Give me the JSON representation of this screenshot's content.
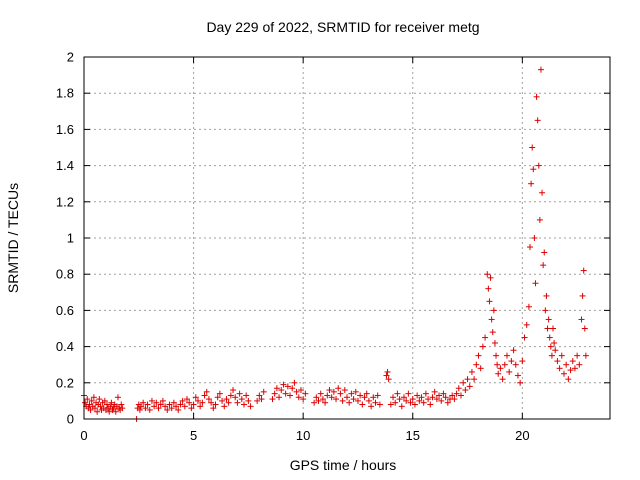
{
  "chart_data": {
    "type": "scatter",
    "title": "Day 229 of 2022, SRMTID for receiver metg",
    "xlabel": "GPS time / hours",
    "ylabel": "SRMTID / TECUs",
    "xlim": [
      0,
      24
    ],
    "ylim": [
      0,
      2
    ],
    "xticks": [
      0,
      5,
      10,
      15,
      20
    ],
    "yticks": [
      0,
      0.2,
      0.4,
      0.6,
      0.8,
      1,
      1.2,
      1.4,
      1.6,
      1.8,
      2
    ],
    "ytick_labels": [
      "0",
      "0.2",
      "0.4",
      "0.6",
      "0.8",
      "1",
      "1.2",
      "1.4",
      "1.6",
      "1.8",
      "2"
    ],
    "marker": "+",
    "grid": true,
    "color": "#dd0000",
    "series": [
      {
        "name": "SRMTID",
        "points": [
          [
            0.0,
            0.13
          ],
          [
            0.05,
            0.09
          ],
          [
            0.1,
            0.07
          ],
          [
            0.15,
            0.11
          ],
          [
            0.2,
            0.06
          ],
          [
            0.25,
            0.08
          ],
          [
            0.3,
            0.05
          ],
          [
            0.35,
            0.1
          ],
          [
            0.4,
            0.07
          ],
          [
            0.45,
            0.12
          ],
          [
            0.5,
            0.06
          ],
          [
            0.55,
            0.09
          ],
          [
            0.6,
            0.04
          ],
          [
            0.65,
            0.08
          ],
          [
            0.7,
            0.11
          ],
          [
            0.75,
            0.07
          ],
          [
            0.8,
            0.05
          ],
          [
            0.85,
            0.09
          ],
          [
            0.9,
            0.06
          ],
          [
            0.95,
            0.1
          ],
          [
            1.0,
            0.05
          ],
          [
            1.05,
            0.08
          ],
          [
            1.1,
            0.06
          ],
          [
            1.15,
            0.04
          ],
          [
            1.2,
            0.07
          ],
          [
            1.25,
            0.09
          ],
          [
            1.3,
            0.05
          ],
          [
            1.35,
            0.06
          ],
          [
            1.4,
            0.08
          ],
          [
            1.45,
            0.04
          ],
          [
            1.5,
            0.07
          ],
          [
            1.55,
            0.12
          ],
          [
            1.6,
            0.06
          ],
          [
            1.65,
            0.05
          ],
          [
            1.7,
            0.08
          ],
          [
            1.75,
            0.06
          ],
          [
            2.4,
            0.0
          ],
          [
            2.45,
            0.06
          ],
          [
            2.5,
            0.08
          ],
          [
            2.55,
            0.05
          ],
          [
            2.6,
            0.07
          ],
          [
            2.7,
            0.09
          ],
          [
            2.8,
            0.06
          ],
          [
            2.9,
            0.08
          ],
          [
            3.0,
            0.05
          ],
          [
            3.1,
            0.1
          ],
          [
            3.2,
            0.07
          ],
          [
            3.3,
            0.09
          ],
          [
            3.4,
            0.06
          ],
          [
            3.5,
            0.08
          ],
          [
            3.6,
            0.1
          ],
          [
            3.7,
            0.07
          ],
          [
            3.8,
            0.05
          ],
          [
            3.9,
            0.08
          ],
          [
            4.0,
            0.06
          ],
          [
            4.1,
            0.09
          ],
          [
            4.2,
            0.07
          ],
          [
            4.3,
            0.05
          ],
          [
            4.4,
            0.08
          ],
          [
            4.5,
            0.1
          ],
          [
            4.6,
            0.07
          ],
          [
            4.7,
            0.11
          ],
          [
            4.8,
            0.09
          ],
          [
            4.9,
            0.06
          ],
          [
            5.0,
            0.08
          ],
          [
            5.1,
            0.12
          ],
          [
            5.2,
            0.1
          ],
          [
            5.3,
            0.07
          ],
          [
            5.4,
            0.09
          ],
          [
            5.5,
            0.13
          ],
          [
            5.6,
            0.15
          ],
          [
            5.7,
            0.11
          ],
          [
            5.8,
            0.09
          ],
          [
            5.9,
            0.06
          ],
          [
            6.0,
            0.08
          ],
          [
            6.1,
            0.12
          ],
          [
            6.2,
            0.14
          ],
          [
            6.3,
            0.1
          ],
          [
            6.4,
            0.07
          ],
          [
            6.5,
            0.11
          ],
          [
            6.6,
            0.09
          ],
          [
            6.7,
            0.13
          ],
          [
            6.8,
            0.16
          ],
          [
            6.9,
            0.12
          ],
          [
            7.0,
            0.09
          ],
          [
            7.1,
            0.14
          ],
          [
            7.2,
            0.11
          ],
          [
            7.3,
            0.08
          ],
          [
            7.4,
            0.13
          ],
          [
            7.5,
            0.1
          ],
          [
            7.6,
            0.07
          ],
          [
            7.9,
            0.1
          ],
          [
            8.0,
            0.13
          ],
          [
            8.1,
            0.11
          ],
          [
            8.2,
            0.15
          ],
          [
            8.6,
            0.11
          ],
          [
            8.7,
            0.14
          ],
          [
            8.8,
            0.17
          ],
          [
            8.9,
            0.12
          ],
          [
            9.0,
            0.16
          ],
          [
            9.1,
            0.19
          ],
          [
            9.2,
            0.14
          ],
          [
            9.3,
            0.18
          ],
          [
            9.4,
            0.13
          ],
          [
            9.5,
            0.17
          ],
          [
            9.6,
            0.2
          ],
          [
            9.7,
            0.15
          ],
          [
            9.8,
            0.12
          ],
          [
            9.9,
            0.16
          ],
          [
            10.0,
            0.11
          ],
          [
            10.1,
            0.14
          ],
          [
            10.5,
            0.09
          ],
          [
            10.6,
            0.12
          ],
          [
            10.7,
            0.1
          ],
          [
            10.8,
            0.14
          ],
          [
            10.9,
            0.11
          ],
          [
            11.0,
            0.09
          ],
          [
            11.1,
            0.13
          ],
          [
            11.2,
            0.16
          ],
          [
            11.3,
            0.12
          ],
          [
            11.4,
            0.15
          ],
          [
            11.5,
            0.11
          ],
          [
            11.6,
            0.17
          ],
          [
            11.7,
            0.14
          ],
          [
            11.8,
            0.1
          ],
          [
            11.9,
            0.16
          ],
          [
            12.0,
            0.12
          ],
          [
            12.1,
            0.09
          ],
          [
            12.2,
            0.14
          ],
          [
            12.3,
            0.11
          ],
          [
            12.4,
            0.15
          ],
          [
            12.5,
            0.1
          ],
          [
            12.6,
            0.13
          ],
          [
            12.7,
            0.08
          ],
          [
            12.8,
            0.12
          ],
          [
            12.9,
            0.14
          ],
          [
            13.0,
            0.1
          ],
          [
            13.1,
            0.07
          ],
          [
            13.2,
            0.12
          ],
          [
            13.3,
            0.09
          ],
          [
            13.4,
            0.13
          ],
          [
            13.5,
            0.08
          ],
          [
            13.8,
            0.24
          ],
          [
            13.85,
            0.26
          ],
          [
            13.9,
            0.22
          ],
          [
            14.0,
            0.08
          ],
          [
            14.1,
            0.12
          ],
          [
            14.2,
            0.09
          ],
          [
            14.3,
            0.14
          ],
          [
            14.4,
            0.11
          ],
          [
            14.5,
            0.07
          ],
          [
            14.6,
            0.12
          ],
          [
            14.7,
            0.1
          ],
          [
            14.8,
            0.14
          ],
          [
            14.9,
            0.09
          ],
          [
            15.0,
            0.11
          ],
          [
            15.1,
            0.08
          ],
          [
            15.2,
            0.13
          ],
          [
            15.3,
            0.1
          ],
          [
            15.4,
            0.12
          ],
          [
            15.5,
            0.09
          ],
          [
            15.6,
            0.14
          ],
          [
            15.7,
            0.11
          ],
          [
            15.8,
            0.08
          ],
          [
            15.9,
            0.12
          ],
          [
            16.0,
            0.15
          ],
          [
            16.1,
            0.11
          ],
          [
            16.2,
            0.13
          ],
          [
            16.3,
            0.1
          ],
          [
            16.4,
            0.14
          ],
          [
            16.5,
            0.12
          ],
          [
            16.6,
            0.09
          ],
          [
            16.7,
            0.11
          ],
          [
            16.8,
            0.13
          ],
          [
            16.9,
            0.11
          ],
          [
            17.0,
            0.14
          ],
          [
            17.1,
            0.17
          ],
          [
            17.2,
            0.13
          ],
          [
            17.3,
            0.2
          ],
          [
            17.4,
            0.16
          ],
          [
            17.5,
            0.22
          ],
          [
            17.6,
            0.18
          ],
          [
            17.7,
            0.26
          ],
          [
            17.8,
            0.22
          ],
          [
            17.9,
            0.3
          ],
          [
            18.0,
            0.35
          ],
          [
            18.1,
            0.28
          ],
          [
            18.2,
            0.4
          ],
          [
            18.3,
            0.45
          ],
          [
            18.4,
            0.8
          ],
          [
            18.45,
            0.72
          ],
          [
            18.5,
            0.65
          ],
          [
            18.55,
            0.78
          ],
          [
            18.6,
            0.55
          ],
          [
            18.65,
            0.48
          ],
          [
            18.7,
            0.6
          ],
          [
            18.75,
            0.42
          ],
          [
            18.8,
            0.35
          ],
          [
            18.85,
            0.3
          ],
          [
            18.9,
            0.25
          ],
          [
            19.0,
            0.28
          ],
          [
            19.1,
            0.22
          ],
          [
            19.2,
            0.3
          ],
          [
            19.3,
            0.35
          ],
          [
            19.4,
            0.26
          ],
          [
            19.5,
            0.32
          ],
          [
            19.6,
            0.38
          ],
          [
            19.7,
            0.3
          ],
          [
            19.8,
            0.24
          ],
          [
            19.9,
            0.2
          ],
          [
            20.0,
            0.32
          ],
          [
            20.1,
            0.45
          ],
          [
            20.2,
            0.52
          ],
          [
            20.3,
            0.62
          ],
          [
            20.35,
            0.95
          ],
          [
            20.4,
            1.3
          ],
          [
            20.45,
            1.5
          ],
          [
            20.5,
            1.38
          ],
          [
            20.55,
            1.0
          ],
          [
            20.6,
            0.75
          ],
          [
            20.65,
            1.78
          ],
          [
            20.7,
            1.65
          ],
          [
            20.75,
            1.4
          ],
          [
            20.8,
            1.1
          ],
          [
            20.85,
            1.93
          ],
          [
            20.9,
            1.25
          ],
          [
            20.95,
            0.85
          ],
          [
            21.0,
            0.92
          ],
          [
            21.05,
            0.6
          ],
          [
            21.1,
            0.68
          ],
          [
            21.15,
            0.5
          ],
          [
            21.2,
            0.55
          ],
          [
            21.25,
            0.45
          ],
          [
            21.3,
            0.4
          ],
          [
            21.35,
            0.35
          ],
          [
            21.4,
            0.5
          ],
          [
            21.45,
            0.42
          ],
          [
            21.5,
            0.38
          ],
          [
            21.6,
            0.32
          ],
          [
            21.7,
            0.28
          ],
          [
            21.8,
            0.35
          ],
          [
            21.9,
            0.25
          ],
          [
            22.0,
            0.3
          ],
          [
            22.1,
            0.22
          ],
          [
            22.2,
            0.27
          ],
          [
            22.3,
            0.32
          ],
          [
            22.4,
            0.28
          ],
          [
            22.5,
            0.35
          ],
          [
            22.6,
            0.3
          ],
          [
            22.7,
            0.55
          ],
          [
            22.75,
            0.68
          ],
          [
            22.8,
            0.82
          ],
          [
            22.85,
            0.5
          ],
          [
            22.9,
            0.35
          ]
        ]
      }
    ]
  }
}
